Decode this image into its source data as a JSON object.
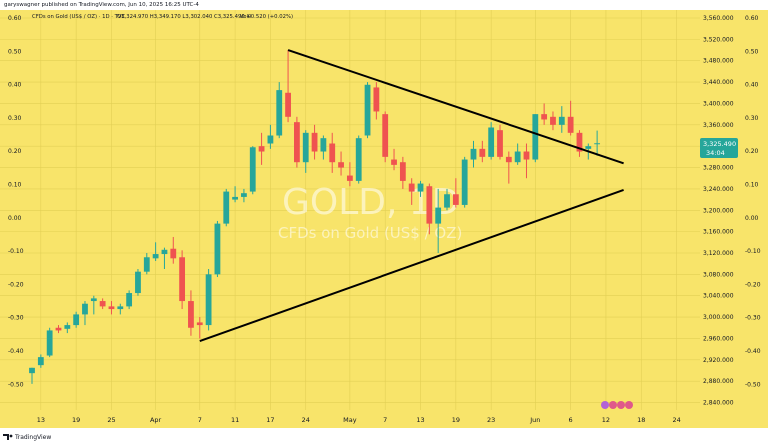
{
  "publisher": "garyswagner published on TradingView.com, Jun 10, 2025 16:25 UTC-4",
  "header": {
    "symbol_line": "CFDs on Gold (US$ / OZ) · 1D · TVC",
    "ohlc": "O3,324.970  H3,349.170  L3,302.040  C3,325.490  +0.520 (+0.02%)",
    "vol": "Vol0"
  },
  "watermark": {
    "main": "GOLD, 1D",
    "sub": "CFDs on Gold (US$ / OZ)"
  },
  "price_tag": {
    "price": "3,325.490",
    "countdown": "34:04"
  },
  "footer_brand": "TradingView",
  "colors": {
    "background": "#f8e46a",
    "up": "#26a69a",
    "down": "#ef5350",
    "trendline": "#000000",
    "grid": "#e2cf55",
    "axis_text": "#131722"
  },
  "chart_data": {
    "type": "candlestick",
    "title": "CFDs on Gold (US$ / OZ)",
    "interval": "1D",
    "y_price_ticks": [
      "3,560.000",
      "3,520.000",
      "3,480.000",
      "3,440.000",
      "3,400.000",
      "3,360.000",
      "3,320.000",
      "3,280.000",
      "3,240.000",
      "3,200.000",
      "3,160.000",
      "3,120.000",
      "3,080.000",
      "3,040.000",
      "3,000.000",
      "2,960.000",
      "2,920.000",
      "2,880.000",
      "2,840.000"
    ],
    "y_price_values": [
      3560,
      3520,
      3480,
      3440,
      3400,
      3360,
      3320,
      3280,
      3240,
      3200,
      3160,
      3120,
      3080,
      3040,
      3000,
      2960,
      2920,
      2880,
      2840
    ],
    "y_osc_ticks": [
      "0.60",
      "0.50",
      "0.40",
      "0.30",
      "0.20",
      "0.10",
      "0.00",
      "-0.10",
      "-0.20",
      "-0.30",
      "-0.40",
      "-0.50"
    ],
    "y_osc_values": [
      0.6,
      0.5,
      0.4,
      0.3,
      0.2,
      0.1,
      0,
      -0.1,
      -0.2,
      -0.3,
      -0.4,
      -0.5
    ],
    "ylim": [
      2826,
      3575
    ],
    "x_ticks": [
      {
        "label": "13",
        "index": 1
      },
      {
        "label": "19",
        "index": 5
      },
      {
        "label": "25",
        "index": 9
      },
      {
        "label": "Apr",
        "index": 14
      },
      {
        "label": "7",
        "index": 19
      },
      {
        "label": "11",
        "index": 23
      },
      {
        "label": "17",
        "index": 27
      },
      {
        "label": "24",
        "index": 31
      },
      {
        "label": "May",
        "index": 36
      },
      {
        "label": "7",
        "index": 40
      },
      {
        "label": "13",
        "index": 44
      },
      {
        "label": "19",
        "index": 48
      },
      {
        "label": "23",
        "index": 52
      },
      {
        "label": "Jun",
        "index": 57
      },
      {
        "label": "6",
        "index": 61
      },
      {
        "label": "12",
        "index": 65
      },
      {
        "label": "18",
        "index": 69
      },
      {
        "label": "24",
        "index": 73
      }
    ],
    "candles": [
      {
        "o": 2895,
        "h": 2905,
        "l": 2875,
        "c": 2905
      },
      {
        "o": 2910,
        "h": 2930,
        "l": 2905,
        "c": 2925
      },
      {
        "o": 2928,
        "h": 2980,
        "l": 2925,
        "c": 2975
      },
      {
        "o": 2980,
        "h": 2985,
        "l": 2970,
        "c": 2975
      },
      {
        "o": 2978,
        "h": 2990,
        "l": 2970,
        "c": 2985
      },
      {
        "o": 2985,
        "h": 3010,
        "l": 2980,
        "c": 3005
      },
      {
        "o": 3005,
        "h": 3030,
        "l": 2985,
        "c": 3025
      },
      {
        "o": 3030,
        "h": 3040,
        "l": 3005,
        "c": 3035
      },
      {
        "o": 3030,
        "h": 3035,
        "l": 3015,
        "c": 3020
      },
      {
        "o": 3020,
        "h": 3030,
        "l": 3005,
        "c": 3015
      },
      {
        "o": 3015,
        "h": 3025,
        "l": 3005,
        "c": 3020
      },
      {
        "o": 3020,
        "h": 3050,
        "l": 3015,
        "c": 3045
      },
      {
        "o": 3045,
        "h": 3090,
        "l": 3040,
        "c": 3085
      },
      {
        "o": 3085,
        "h": 3120,
        "l": 3080,
        "c": 3112
      },
      {
        "o": 3110,
        "h": 3140,
        "l": 3105,
        "c": 3118
      },
      {
        "o": 3118,
        "h": 3130,
        "l": 3090,
        "c": 3126
      },
      {
        "o": 3128,
        "h": 3150,
        "l": 3100,
        "c": 3110
      },
      {
        "o": 3112,
        "h": 3125,
        "l": 3015,
        "c": 3030
      },
      {
        "o": 3030,
        "h": 3050,
        "l": 2965,
        "c": 2980
      },
      {
        "o": 2990,
        "h": 3000,
        "l": 2960,
        "c": 2985
      },
      {
        "o": 2985,
        "h": 3090,
        "l": 2975,
        "c": 3080
      },
      {
        "o": 3080,
        "h": 3180,
        "l": 3075,
        "c": 3175
      },
      {
        "o": 3175,
        "h": 3240,
        "l": 3170,
        "c": 3235
      },
      {
        "o": 3220,
        "h": 3245,
        "l": 3215,
        "c": 3225
      },
      {
        "o": 3225,
        "h": 3240,
        "l": 3215,
        "c": 3232
      },
      {
        "o": 3235,
        "h": 3320,
        "l": 3230,
        "c": 3318
      },
      {
        "o": 3320,
        "h": 3345,
        "l": 3285,
        "c": 3310
      },
      {
        "o": 3325,
        "h": 3360,
        "l": 3315,
        "c": 3340
      },
      {
        "o": 3340,
        "h": 3440,
        "l": 3335,
        "c": 3425
      },
      {
        "o": 3420,
        "h": 3500,
        "l": 3365,
        "c": 3375
      },
      {
        "o": 3365,
        "h": 3375,
        "l": 3280,
        "c": 3290
      },
      {
        "o": 3290,
        "h": 3350,
        "l": 3270,
        "c": 3345
      },
      {
        "o": 3345,
        "h": 3360,
        "l": 3295,
        "c": 3310
      },
      {
        "o": 3310,
        "h": 3340,
        "l": 3295,
        "c": 3335
      },
      {
        "o": 3325,
        "h": 3345,
        "l": 3270,
        "c": 3290
      },
      {
        "o": 3290,
        "h": 3310,
        "l": 3265,
        "c": 3280
      },
      {
        "o": 3265,
        "h": 3290,
        "l": 3245,
        "c": 3255
      },
      {
        "o": 3255,
        "h": 3340,
        "l": 3250,
        "c": 3335
      },
      {
        "o": 3340,
        "h": 3440,
        "l": 3335,
        "c": 3435
      },
      {
        "o": 3430,
        "h": 3440,
        "l": 3370,
        "c": 3385
      },
      {
        "o": 3380,
        "h": 3385,
        "l": 3290,
        "c": 3300
      },
      {
        "o": 3295,
        "h": 3315,
        "l": 3275,
        "c": 3285
      },
      {
        "o": 3290,
        "h": 3300,
        "l": 3240,
        "c": 3255
      },
      {
        "o": 3250,
        "h": 3260,
        "l": 3210,
        "c": 3235
      },
      {
        "o": 3235,
        "h": 3255,
        "l": 3225,
        "c": 3250
      },
      {
        "o": 3245,
        "h": 3250,
        "l": 3155,
        "c": 3175
      },
      {
        "o": 3175,
        "h": 3240,
        "l": 3120,
        "c": 3205
      },
      {
        "o": 3205,
        "h": 3240,
        "l": 3200,
        "c": 3230
      },
      {
        "o": 3230,
        "h": 3260,
        "l": 3205,
        "c": 3210
      },
      {
        "o": 3210,
        "h": 3300,
        "l": 3205,
        "c": 3295
      },
      {
        "o": 3295,
        "h": 3330,
        "l": 3280,
        "c": 3315
      },
      {
        "o": 3315,
        "h": 3330,
        "l": 3290,
        "c": 3300
      },
      {
        "o": 3300,
        "h": 3365,
        "l": 3295,
        "c": 3355
      },
      {
        "o": 3350,
        "h": 3360,
        "l": 3295,
        "c": 3300
      },
      {
        "o": 3300,
        "h": 3310,
        "l": 3250,
        "c": 3290
      },
      {
        "o": 3290,
        "h": 3325,
        "l": 3285,
        "c": 3310
      },
      {
        "o": 3310,
        "h": 3325,
        "l": 3260,
        "c": 3295
      },
      {
        "o": 3295,
        "h": 3380,
        "l": 3290,
        "c": 3380
      },
      {
        "o": 3380,
        "h": 3400,
        "l": 3360,
        "c": 3370
      },
      {
        "o": 3375,
        "h": 3385,
        "l": 3350,
        "c": 3360
      },
      {
        "o": 3360,
        "h": 3395,
        "l": 3345,
        "c": 3375
      },
      {
        "o": 3375,
        "h": 3405,
        "l": 3340,
        "c": 3345
      },
      {
        "o": 3345,
        "h": 3350,
        "l": 3300,
        "c": 3310
      },
      {
        "o": 3315,
        "h": 3325,
        "l": 3295,
        "c": 3320
      },
      {
        "o": 3324.97,
        "h": 3349.17,
        "l": 3302.04,
        "c": 3325.49
      }
    ],
    "trendlines": [
      {
        "name": "upper",
        "from": {
          "index": 29,
          "price": 3500
        },
        "to": {
          "index": 67,
          "price": 3288
        }
      },
      {
        "name": "lower",
        "from": {
          "index": 19,
          "price": 2955
        },
        "to": {
          "index": 67,
          "price": 3238
        }
      }
    ]
  }
}
